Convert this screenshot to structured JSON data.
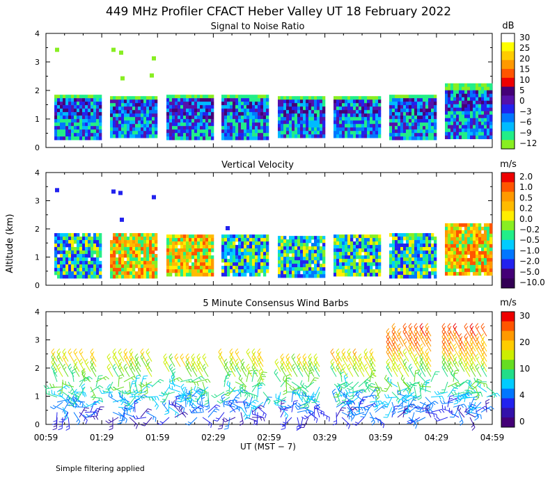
{
  "title": "449 MHz Profiler CFACT Heber Valley UT 18 February 2022",
  "footnote": "Simple filtering applied",
  "y_axis_label": "Altitude (km)",
  "x_axis_label": "UT  (MST − 7)",
  "time_ticks": [
    "00:59",
    "01:29",
    "01:59",
    "02:29",
    "02:59",
    "03:29",
    "03:59",
    "04:29",
    "04:59"
  ],
  "chart_data": [
    {
      "type": "heatmap",
      "title": "Signal to Noise Ratio",
      "units": "dB",
      "ylabel": "Altitude (km)",
      "ylim": [
        0,
        4
      ],
      "yticks": [
        "0",
        "1",
        "2",
        "3",
        "4"
      ],
      "x_range": [
        "00:59",
        "04:59"
      ],
      "colorbar_labels": [
        "30",
        "25",
        "20",
        "15",
        "10",
        "5",
        "0",
        "−3",
        "−6",
        "−9",
        "−12"
      ],
      "colors": [
        "#ffffff",
        "#ffff00",
        "#ffcc00",
        "#ff9900",
        "#ff5500",
        "#ee0000",
        "#440077",
        "#5511aa",
        "#2222ee",
        "#0077ff",
        "#00bbff",
        "#22ee88",
        "#88ee22"
      ],
      "range_gate_top_km": [
        1.85,
        1.8,
        1.85,
        1.85,
        1.8,
        1.8,
        1.85,
        2.25
      ]
    },
    {
      "type": "heatmap",
      "title": "Vertical Velocity",
      "units": "m/s",
      "ylabel": "Altitude (km)",
      "ylim": [
        0,
        4
      ],
      "yticks": [
        "0",
        "1",
        "2",
        "3",
        "4"
      ],
      "x_range": [
        "00:59",
        "04:59"
      ],
      "colorbar_labels": [
        "2.0",
        "1.0",
        "0.5",
        "0.2",
        "0.0",
        "−0.2",
        "−0.5",
        "−1.0",
        "−2.0",
        "−5.0",
        "−10.0"
      ],
      "colors": [
        "#ee0000",
        "#ff5500",
        "#ff9900",
        "#ffbb00",
        "#ffee00",
        "#88ee22",
        "#22ee88",
        "#00ccff",
        "#0077ff",
        "#2222ee",
        "#440077",
        "#330055"
      ],
      "range_gate_top_km": [
        1.85,
        1.85,
        1.8,
        1.8,
        1.75,
        1.8,
        1.85,
        2.2
      ]
    },
    {
      "type": "wind_barbs",
      "title": "5 Minute Consensus Wind Barbs",
      "units": "m/s",
      "ylabel": "Altitude (km)",
      "ylim": [
        0,
        4
      ],
      "yticks": [
        "0",
        "1",
        "2",
        "3",
        "4"
      ],
      "x_range": [
        "00:59",
        "04:59"
      ],
      "colorbar_labels": [
        "30",
        "20",
        "10",
        "4",
        "0"
      ],
      "colors": [
        "#ee0000",
        "#ff5500",
        "#ff9900",
        "#ffcc00",
        "#ccee00",
        "#66dd22",
        "#22dd88",
        "#00ccff",
        "#0077ff",
        "#2222ee",
        "#3311aa",
        "#440077"
      ],
      "max_height_km": [
        2.3,
        2.3,
        2.2,
        2.3,
        2.2,
        2.3,
        3.2,
        3.2
      ]
    }
  ]
}
